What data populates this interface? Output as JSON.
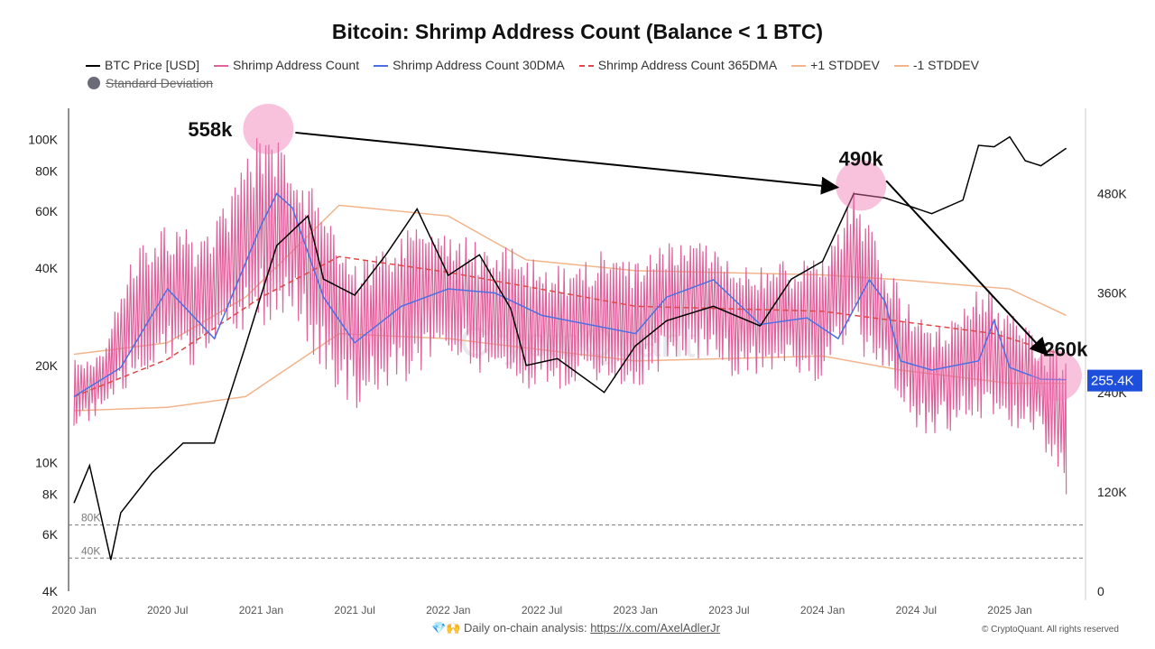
{
  "chart_data": {
    "type": "line",
    "title": "Bitcoin: Shrimp Address Count (Balance < 1 BTC)",
    "legend": [
      {
        "name": "BTC Price [USD]",
        "color": "#000000",
        "style": "solid"
      },
      {
        "name": "Shrimp Address Count",
        "color": "#e0619c",
        "style": "solid"
      },
      {
        "name": "Shrimp Address Count 30DMA",
        "color": "#4a6fe3",
        "style": "solid"
      },
      {
        "name": "Shrimp Address Count 365DMA",
        "color": "#e04848",
        "style": "dashed"
      },
      {
        "name": "+1 STDDEV",
        "color": "#f2b48a",
        "style": "solid"
      },
      {
        "name": "-1 STDDEV",
        "color": "#f2b48a",
        "style": "solid"
      },
      {
        "name": "Standard Deviation",
        "color": "#6b6b78",
        "hidden": true
      }
    ],
    "legend_position": "top",
    "x_ticks": [
      "2020 Jan",
      "2020 Jul",
      "2021 Jan",
      "2021 Jul",
      "2022 Jan",
      "2022 Jul",
      "2023 Jan",
      "2023 Jul",
      "2024 Jan",
      "2024 Jul",
      "2025 Jan"
    ],
    "xlim": [
      "2020-01",
      "2025-04-20"
    ],
    "left_axis": {
      "scale": "log",
      "ticks": [
        "100K",
        "80K",
        "60K",
        "40K",
        "20K",
        "10K",
        "8K",
        "6K",
        "4K"
      ],
      "tick_values": [
        100000,
        80000,
        60000,
        40000,
        20000,
        10000,
        8000,
        6000,
        4000
      ],
      "ylim": [
        4000,
        125000
      ]
    },
    "right_axis": {
      "scale": "linear",
      "ticks": [
        "480K",
        "360K",
        "240K",
        "120K",
        "0"
      ],
      "tick_values": [
        480000,
        360000,
        240000,
        120000,
        0
      ],
      "ylim": [
        0,
        583000
      ]
    },
    "reference_lines": [
      {
        "label": "80K",
        "value": 80000
      },
      {
        "label": "40K",
        "value": 40000
      }
    ],
    "last_value_label": "255.4K",
    "btc_price": {
      "x": [
        "2020-01",
        "2020-02",
        "2020-03-12",
        "2020-04",
        "2020-06",
        "2020-08",
        "2020-10",
        "2020-12",
        "2021-01",
        "2021-02",
        "2021-04",
        "2021-05",
        "2021-07",
        "2021-09",
        "2021-11",
        "2022-01",
        "2022-03",
        "2022-05",
        "2022-06",
        "2022-08",
        "2022-11",
        "2023-01",
        "2023-03",
        "2023-06",
        "2023-09",
        "2023-11",
        "2024-01",
        "2024-03",
        "2024-05",
        "2024-08",
        "2024-10",
        "2024-11",
        "2024-12",
        "2025-01",
        "2025-02",
        "2025-03",
        "2025-04-20"
      ],
      "y": [
        7500,
        9800,
        5000,
        7000,
        9300,
        11500,
        11500,
        23000,
        33000,
        47000,
        58000,
        37000,
        33000,
        44000,
        61000,
        38000,
        44000,
        30000,
        20000,
        21000,
        16500,
        23000,
        27500,
        30500,
        26500,
        37000,
        42000,
        68000,
        66000,
        59000,
        65000,
        96000,
        95000,
        102000,
        86000,
        83000,
        94000
      ]
    },
    "shrimp_30dma": {
      "x": [
        "2020-01",
        "2020-04",
        "2020-07",
        "2020-10",
        "2021-01",
        "2021-02",
        "2021-03",
        "2021-05",
        "2021-07",
        "2021-10",
        "2022-01",
        "2022-04",
        "2022-07",
        "2022-10",
        "2023-01",
        "2023-03",
        "2023-06",
        "2023-09",
        "2023-12",
        "2024-02",
        "2024-04",
        "2024-05",
        "2024-06",
        "2024-08",
        "2024-11",
        "2024-12",
        "2025-01",
        "2025-03",
        "2025-04-20"
      ],
      "y": [
        235000,
        270000,
        365000,
        305000,
        442000,
        480000,
        463000,
        355000,
        300000,
        344000,
        365000,
        360000,
        333000,
        322000,
        311000,
        355000,
        376000,
        322000,
        330000,
        305000,
        376000,
        350000,
        278000,
        267000,
        278000,
        327000,
        270000,
        256000,
        255400
      ]
    },
    "shrimp_365dma": {
      "x": [
        "2020-01",
        "2020-07",
        "2021-01",
        "2021-06",
        "2022-01",
        "2023-01",
        "2024-01",
        "2024-12",
        "2025-04-20"
      ],
      "y": [
        235000,
        280000,
        355000,
        404000,
        385000,
        344000,
        338000,
        311000,
        284000
      ]
    },
    "plus_1_stddev": {
      "x": [
        "2020-01",
        "2020-07",
        "2020-12",
        "2021-06",
        "2022-01",
        "2022-06",
        "2023-01",
        "2024-01",
        "2024-06",
        "2025-01",
        "2025-04-20"
      ],
      "y": [
        286000,
        300000,
        355000,
        466000,
        453000,
        400000,
        387000,
        382000,
        376000,
        365000,
        333000
      ]
    },
    "minus_1_stddev": {
      "x": [
        "2020-01",
        "2020-07",
        "2020-12",
        "2021-06",
        "2022-01",
        "2023-01",
        "2024-01",
        "2024-06",
        "2025-01",
        "2025-04-20"
      ],
      "y": [
        218000,
        222000,
        235000,
        311000,
        305000,
        278000,
        284000,
        267000,
        251000,
        251000
      ]
    },
    "shrimp_count_range": {
      "x": [
        "2020-01",
        "2020-03",
        "2020-05",
        "2020-07",
        "2020-09",
        "2020-11",
        "2021-01",
        "2021-03",
        "2021-05",
        "2021-07",
        "2021-09",
        "2021-11",
        "2022-01",
        "2022-03",
        "2022-05",
        "2022-07",
        "2022-09",
        "2022-11",
        "2023-01",
        "2023-03",
        "2023-05",
        "2023-07",
        "2023-09",
        "2023-11",
        "2024-01",
        "2024-03",
        "2024-05",
        "2024-07",
        "2024-09",
        "2024-11",
        "2025-01",
        "2025-03",
        "2025-04-20"
      ],
      "low": [
        200000,
        210000,
        250000,
        280000,
        260000,
        290000,
        320000,
        330000,
        260000,
        220000,
        240000,
        260000,
        280000,
        260000,
        250000,
        240000,
        240000,
        250000,
        240000,
        270000,
        280000,
        260000,
        250000,
        260000,
        250000,
        290000,
        250000,
        190000,
        190000,
        200000,
        190000,
        180000,
        117000
      ],
      "high": [
        280000,
        300000,
        420000,
        450000,
        430000,
        480000,
        558000,
        530000,
        470000,
        400000,
        420000,
        450000,
        440000,
        420000,
        420000,
        400000,
        390000,
        420000,
        400000,
        420000,
        430000,
        410000,
        400000,
        400000,
        410000,
        490000,
        400000,
        330000,
        320000,
        380000,
        340000,
        300000,
        290000
      ]
    },
    "annotations": [
      {
        "text": "558k",
        "date": "2021-01-15",
        "value": 558000
      },
      {
        "text": "490k",
        "date": "2024-03-15",
        "value": 490000
      },
      {
        "text": "260k",
        "date": "2025-04-01",
        "value": 260000
      }
    ],
    "watermark": "CryptoQuant"
  },
  "footer": {
    "emoji": "💎🙌",
    "text": "Daily on-chain analysis: ",
    "link": "https://x.com/AxelAdlerJr",
    "copyright": "© CryptoQuant. All rights reserved"
  }
}
